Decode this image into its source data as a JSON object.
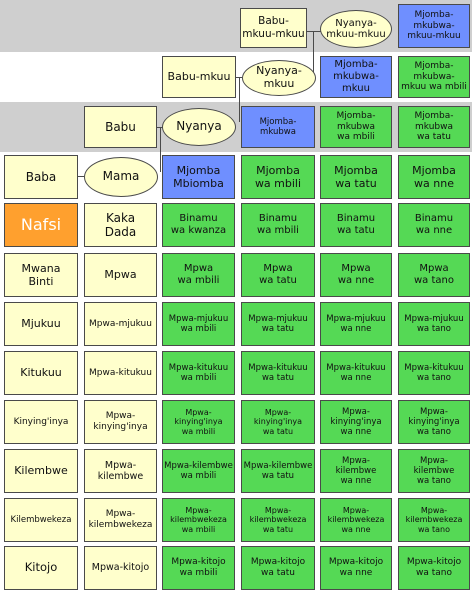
{
  "colors": {
    "self": "#ffa02e",
    "direct_line": "#ffffcc",
    "uncle_line": "#6f8fff",
    "cousin_line": "#55d955",
    "band_gray": "#cfcfcf"
  },
  "ancestors": {
    "great_grandfather": "Babu-\nmkuu-mkuu",
    "great_grandmother": "Nyanya-\nmkuu-mkuu",
    "grandfather2": "Babu-mkuu",
    "grandmother2": "Nyanya-mkuu",
    "grandfather": "Babu",
    "grandmother": "Nyanya",
    "father": "Baba",
    "mother": "Mama"
  },
  "col1": {
    "self": "Nafsi",
    "child": "Mwana\nBinti",
    "grandchild": "Mjukuu",
    "great_grandchild": "Kitukuu",
    "gen4": "Kinying'inya",
    "gen5": "Kilembwe",
    "gen6": "Kilembwekeza",
    "gen7": "Kitojo"
  },
  "col2": {
    "sibling": "Kaka\nDada",
    "nephew": "Mpwa",
    "grandnephew": "Mpwa-mjukuu",
    "great_grandnephew": "Mpwa-kitukuu",
    "gen4": "Mpwa-\nkinying'inya",
    "gen5": "Mpwa-\nkilembwe",
    "gen6": "Mpwa-\nkilembwekeza",
    "gen7": "Mpwa-kitojo"
  },
  "col3": {
    "uncle": "Mjomba\nMbiomba",
    "cousin": "Binamu\nwa kwanza",
    "nephew": "Mpwa\nwa mbili",
    "grandnephew": "Mpwa-mjukuu\nwa mbili",
    "great_grandnephew": "Mpwa-kitukuu\nwa mbili",
    "gen4": "Mpwa-\nkinying'inya\nwa mbili",
    "gen5": "Mpwa-kilembwe\nwa mbili",
    "gen6": "Mpwa-\nkilembwekeza\nwa mbili",
    "gen7": "Mpwa-kitojo\nwa mbili"
  },
  "col4": {
    "granduncle": "Mjomba-mkubwa",
    "uncle": "Mjomba\nwa mbili",
    "cousin": "Binamu\nwa mbili",
    "nephew": "Mpwa\nwa tatu",
    "grandnephew": "Mpwa-mjukuu\nwa tatu",
    "great_grandnephew": "Mpwa-kitukuu\nwa tatu",
    "gen4": "Mpwa-\nkinying'inya\nwa tatu",
    "gen5": "Mpwa-kilembwe\nwa tatu",
    "gen6": "Mpwa-\nkilembwekeza\nwa tatu",
    "gen7": "Mpwa-kitojo\nwa tatu"
  },
  "col5": {
    "great_granduncle": "Mjomba-\nmkubwa-mkuu",
    "granduncle": "Mjomba-mkubwa\nwa mbili",
    "uncle": "Mjomba\nwa tatu",
    "cousin": "Binamu\nwa tatu",
    "nephew": "Mpwa\nwa nne",
    "grandnephew": "Mpwa-mjukuu\nwa nne",
    "great_grandnephew": "Mpwa-kitukuu\nwa nne",
    "gen4": "Mpwa-\nkinying'inya\nwa nne",
    "gen5": "Mpwa-kilembwe\nwa nne",
    "gen6": "Mpwa-\nkilembwekeza\nwa nne",
    "gen7": "Mpwa-kitojo\nwa nne"
  },
  "col6": {
    "gen_top": "Mjomba-mkubwa-\nmkuu-mkuu",
    "great_granduncle": "Mjomba-mkubwa-\nmkuu wa mbili",
    "granduncle": "Mjomba-mkubwa\nwa tatu",
    "uncle": "Mjomba\nwa nne",
    "cousin": "Binamu\nwa nne",
    "nephew": "Mpwa\nwa tano",
    "grandnephew": "Mpwa-mjukuu\nwa tano",
    "great_grandnephew": "Mpwa-kitukuu\nwa tano",
    "gen4": "Mpwa-\nkinying'inya\nwa tano",
    "gen5": "Mpwa-kilembwe\nwa tano",
    "gen6": "Mpwa-\nkilembwekeza\nwa tano",
    "gen7": "Mpwa-kitojo\nwa tano"
  }
}
